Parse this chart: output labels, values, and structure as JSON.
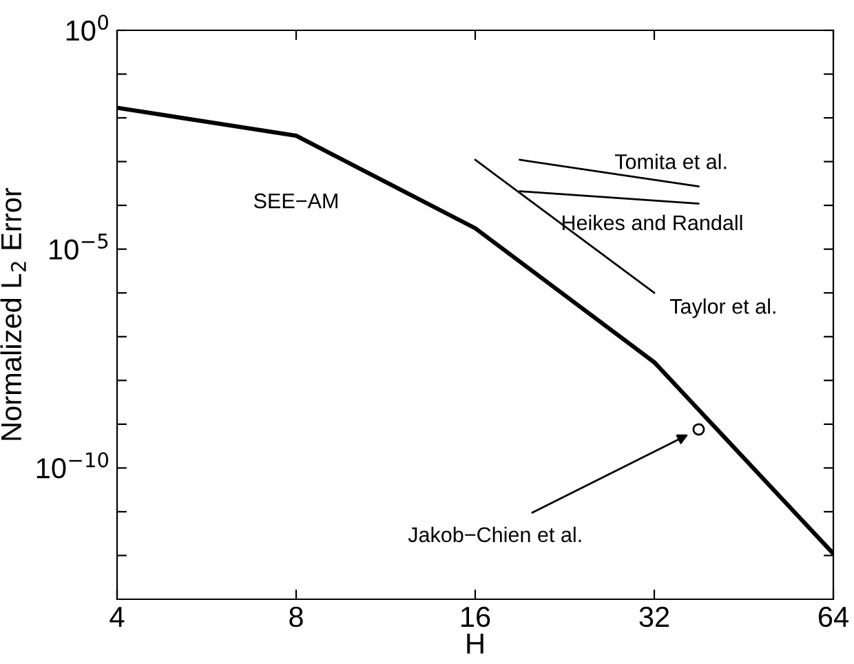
{
  "chart_data": {
    "type": "line",
    "xlabel": "H",
    "ylabel": "Normalized L$_{2}$ Error",
    "log": "xy",
    "grid": false,
    "legend": false,
    "marker": "none",
    "line_style": "solid",
    "xlim": [
      4,
      64
    ],
    "xticks": [
      4,
      8,
      16,
      32,
      64
    ],
    "ylim": [
      1e-13,
      1
    ],
    "yticks": [
      {
        "value": 1,
        "label": "10$^{0}$"
      },
      {
        "value": 0.1,
        "label": null
      },
      {
        "value": 0.01,
        "label": null
      },
      {
        "value": 0.001,
        "label": null
      },
      {
        "value": 0.0001,
        "label": null
      },
      {
        "value": 1e-05,
        "label": "10$^{−5}$"
      },
      {
        "value": 1e-06,
        "label": null
      },
      {
        "value": 1e-07,
        "label": null
      },
      {
        "value": 1e-08,
        "label": null
      },
      {
        "value": 1e-09,
        "label": null
      },
      {
        "value": 1e-10,
        "label": "10$^{−10}$"
      },
      {
        "value": 1e-11,
        "label": null
      },
      {
        "value": 1e-12,
        "label": null
      }
    ],
    "series": [
      {
        "name": "SEE−AM",
        "color": "#000000",
        "x": [
          4,
          8,
          16,
          32,
          64
        ],
        "values": [
          0.017,
          0.0039,
          3e-05,
          2.6e-08,
          1.1e-12
        ]
      },
      {
        "name": "Tomita et al.",
        "color": "#000000",
        "x": [
          19,
          38
        ],
        "values": [
          0.0011,
          0.00027
        ]
      },
      {
        "name": "Heikes and Randall",
        "color": "#000000",
        "x": [
          19,
          38
        ],
        "values": [
          0.00021,
          0.00011
        ]
      },
      {
        "name": "Taylor et al.",
        "color": "#000000",
        "x": [
          16,
          32
        ],
        "values": [
          0.0011,
          1e-06
        ]
      },
      {
        "name": "Jakob−Chien et al.",
        "type": "scatter",
        "marker": "circle",
        "color": "#000000",
        "x": [
          38
        ],
        "values": [
          7.6e-10
        ]
      }
    ]
  }
}
